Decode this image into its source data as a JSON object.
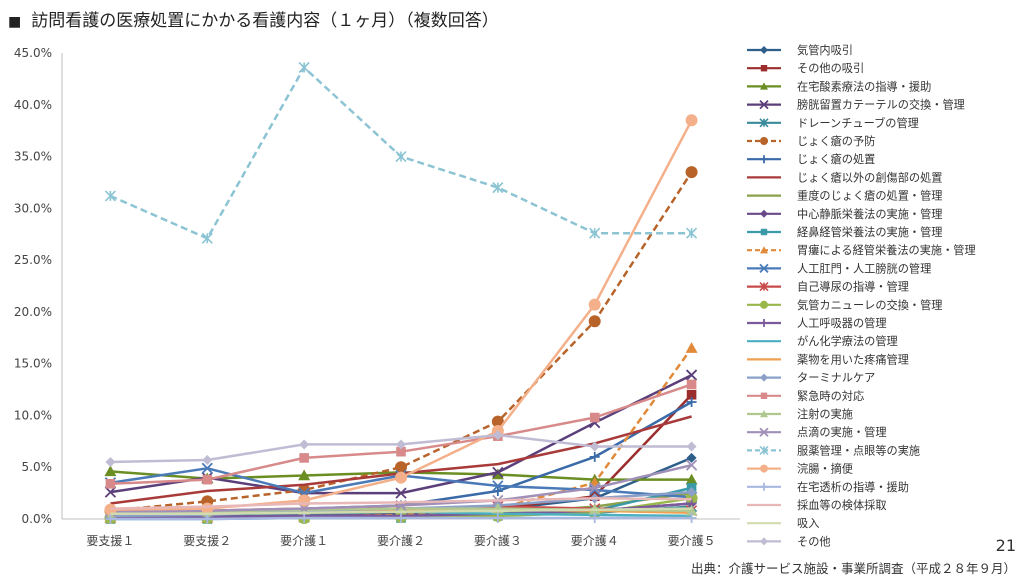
{
  "slide": {
    "title_marker": "■",
    "title": "訪問看護の医療処置にかかる看護内容（１ヶ月）（複数回答）",
    "page_number": "21",
    "source": "出典：介護サービス施設・事業所調査（平成２８年９月）"
  },
  "chart_data": {
    "type": "line",
    "title": "訪問看護の医療処置にかかる看護内容（１ヶ月）（複数回答）",
    "xlabel": "",
    "ylabel": "",
    "ylim": [
      0,
      45
    ],
    "y_ticks": [
      "0.0%",
      "5.0%",
      "10.0%",
      "15.0%",
      "20.0%",
      "25.0%",
      "30.0%",
      "35.0%",
      "40.0%",
      "45.0%"
    ],
    "y_unit": "%",
    "grid": false,
    "legend_position": "right",
    "categories": [
      "要支援１",
      "要支援２",
      "要介護１",
      "要介護２",
      "要介護３",
      "要介護４",
      "要介護５"
    ],
    "series": [
      {
        "name": "気管内吸引",
        "color": "#2e5f8a",
        "marker": "diamond",
        "dashed": false,
        "values": [
          0.3,
          0.3,
          0.5,
          0.6,
          0.9,
          2.0,
          5.9
        ]
      },
      {
        "name": "その他の吸引",
        "color": "#9b2d2d",
        "marker": "square",
        "dashed": false,
        "values": [
          0.2,
          0.3,
          0.6,
          0.7,
          1.0,
          2.2,
          12.0
        ]
      },
      {
        "name": "在宅酸素療法の指導・援助",
        "color": "#6b8e23",
        "marker": "triangle",
        "dashed": false,
        "values": [
          4.6,
          3.9,
          4.2,
          4.5,
          4.3,
          3.8,
          3.8
        ]
      },
      {
        "name": "膀胱留置カテーテルの交換・管理",
        "color": "#5b3f7a",
        "marker": "x",
        "dashed": false,
        "values": [
          2.6,
          4.0,
          2.5,
          2.5,
          4.5,
          9.3,
          13.9
        ]
      },
      {
        "name": "ドレーンチューブの管理",
        "color": "#3a8a9b",
        "marker": "asterisk",
        "dashed": false,
        "values": [
          0.3,
          0.3,
          0.4,
          0.4,
          0.5,
          0.6,
          1.2
        ]
      },
      {
        "name": "じょく瘡の予防",
        "color": "#b8632a",
        "marker": "circle",
        "dashed": true,
        "values": [
          0.8,
          1.7,
          2.8,
          5.0,
          9.4,
          19.1,
          33.5
        ]
      },
      {
        "name": "じょく瘡の処置",
        "color": "#3a6aa8",
        "marker": "plus",
        "dashed": false,
        "values": [
          0.3,
          0.5,
          1.0,
          1.3,
          2.7,
          6.0,
          11.3
        ]
      },
      {
        "name": "じょく瘡以外の創傷部の処置",
        "color": "#a83a3a",
        "marker": "none",
        "dashed": false,
        "values": [
          1.5,
          2.7,
          3.3,
          4.4,
          5.3,
          7.3,
          9.9
        ]
      },
      {
        "name": "重度のじょく瘡の処置・管理",
        "color": "#8aa04a",
        "marker": "none",
        "dashed": false,
        "values": [
          0.1,
          0.1,
          0.2,
          0.3,
          0.5,
          1.2,
          2.5
        ]
      },
      {
        "name": "中心静脈栄養法の実施・管理",
        "color": "#6a4a8a",
        "marker": "diamond",
        "dashed": false,
        "values": [
          0.2,
          0.2,
          0.3,
          0.4,
          0.5,
          0.8,
          1.5
        ]
      },
      {
        "name": "経鼻経管栄養法の実施・管理",
        "color": "#3a9aa8",
        "marker": "square",
        "dashed": false,
        "values": [
          0.0,
          0.0,
          0.1,
          0.1,
          0.3,
          0.8,
          3.0
        ]
      },
      {
        "name": "胃瘻による経管栄養法の実施・管理",
        "color": "#e08a3a",
        "marker": "triangle",
        "dashed": true,
        "values": [
          0.1,
          0.1,
          0.2,
          0.4,
          1.0,
          3.5,
          16.5
        ]
      },
      {
        "name": "人工肛門・人工膀胱の管理",
        "color": "#4a7ab8",
        "marker": "x",
        "dashed": false,
        "values": [
          3.5,
          4.9,
          2.5,
          4.2,
          3.2,
          2.8,
          2.1
        ]
      },
      {
        "name": "自己導尿の指導・管理",
        "color": "#c84a4a",
        "marker": "asterisk",
        "dashed": false,
        "values": [
          0.5,
          0.8,
          1.0,
          1.0,
          1.2,
          1.0,
          0.8
        ]
      },
      {
        "name": "気管カニューレの交換・管理",
        "color": "#9ab84a",
        "marker": "circle",
        "dashed": false,
        "values": [
          0.1,
          0.1,
          0.1,
          0.2,
          0.3,
          0.6,
          2.0
        ]
      },
      {
        "name": "人工呼吸器の管理",
        "color": "#7a5a9a",
        "marker": "plus",
        "dashed": false,
        "values": [
          0.1,
          0.2,
          0.3,
          0.3,
          0.5,
          0.8,
          1.5
        ]
      },
      {
        "name": "がん化学療法の管理",
        "color": "#4ab0c0",
        "marker": "none",
        "dashed": false,
        "values": [
          0.5,
          0.6,
          0.8,
          0.7,
          0.5,
          0.4,
          0.3
        ]
      },
      {
        "name": "薬物を用いた疼痛管理",
        "color": "#f0a050",
        "marker": "none",
        "dashed": false,
        "values": [
          0.4,
          0.5,
          0.8,
          0.9,
          0.9,
          0.8,
          0.6
        ]
      },
      {
        "name": "ターミナルケア",
        "color": "#8aa0c8",
        "marker": "diamond",
        "dashed": false,
        "values": [
          0.3,
          0.4,
          0.8,
          1.0,
          1.3,
          2.0,
          2.6
        ]
      },
      {
        "name": "緊急時の対応",
        "color": "#d88a8a",
        "marker": "square",
        "dashed": false,
        "values": [
          3.4,
          3.8,
          5.9,
          6.5,
          8.0,
          9.8,
          13.0
        ]
      },
      {
        "name": "注射の実施",
        "color": "#b0c890",
        "marker": "triangle",
        "dashed": false,
        "values": [
          0.6,
          0.7,
          0.9,
          1.0,
          1.0,
          0.9,
          0.8
        ]
      },
      {
        "name": "点滴の実施・管理",
        "color": "#a090b8",
        "marker": "x",
        "dashed": false,
        "values": [
          0.7,
          0.8,
          1.0,
          1.3,
          1.8,
          3.0,
          5.2
        ]
      },
      {
        "name": "服薬管理・点眼等の実施",
        "color": "#8cc4d4",
        "marker": "asterisk",
        "dashed": true,
        "values": [
          31.2,
          27.1,
          43.6,
          35.0,
          32.0,
          27.6,
          27.6
        ]
      },
      {
        "name": "浣腸・摘便",
        "color": "#f4b08a",
        "marker": "circle",
        "dashed": false,
        "values": [
          0.9,
          1.0,
          1.8,
          4.0,
          8.5,
          20.7,
          38.5
        ]
      },
      {
        "name": "在宅透析の指導・援助",
        "color": "#a8b8e0",
        "marker": "plus",
        "dashed": false,
        "values": [
          0.0,
          0.0,
          0.1,
          0.1,
          0.1,
          0.1,
          0.1
        ]
      },
      {
        "name": "採血等の検体採取",
        "color": "#e8b8b8",
        "marker": "none",
        "dashed": false,
        "values": [
          1.0,
          1.2,
          1.5,
          1.6,
          1.8,
          2.0,
          1.9
        ]
      },
      {
        "name": "吸入",
        "color": "#d0dcb0",
        "marker": "none",
        "dashed": false,
        "values": [
          0.5,
          0.5,
          0.6,
          0.7,
          0.8,
          0.9,
          1.0
        ]
      },
      {
        "name": "その他",
        "color": "#c0bcd4",
        "marker": "diamond",
        "dashed": false,
        "values": [
          5.5,
          5.7,
          7.2,
          7.2,
          8.1,
          7.0,
          7.0
        ]
      }
    ]
  }
}
